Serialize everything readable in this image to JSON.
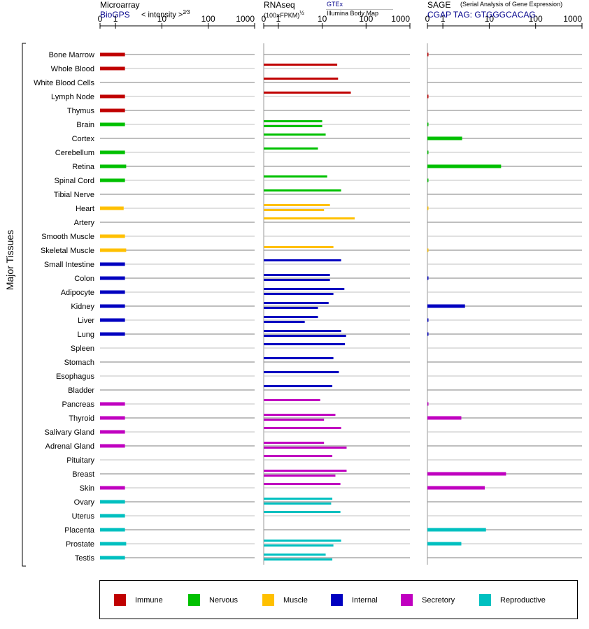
{
  "panels": [
    {
      "key": "microarray",
      "title": "Microarray",
      "source": "BioGPS",
      "scale_label": "< intensity >",
      "exponent": "2⁄3"
    },
    {
      "key": "rnaseq",
      "title": "RNAseq",
      "scale_label": "(100×FPKM)",
      "exponent": "½",
      "source_primary": "GTEx",
      "source_secondary": "Illumina Body Map"
    },
    {
      "key": "sage",
      "title": "SAGE",
      "subtitle": "(Serial Analysis of Gene Expression)",
      "source": "CGAP TAG: GTGGGCACAG"
    }
  ],
  "y_group_label": "Major Tissues",
  "legend": [
    {
      "name": "Immune",
      "color": "#c00000"
    },
    {
      "name": "Nervous",
      "color": "#00c000"
    },
    {
      "name": "Muscle",
      "color": "#ffc000"
    },
    {
      "name": "Internal",
      "color": "#0000c0"
    },
    {
      "name": "Secretory",
      "color": "#c000c0"
    },
    {
      "name": "Reproductive",
      "color": "#00c0c0"
    }
  ],
  "chart_data": {
    "type": "bar",
    "axis": {
      "scale": "custom-power",
      "ticks": [
        0,
        1,
        10,
        100,
        1000
      ],
      "range": [
        0,
        1000
      ]
    },
    "categories": [
      "Bone Marrow",
      "Whole Blood",
      "White Blood Cells",
      "Lymph Node",
      "Thymus",
      "Brain",
      "Cortex",
      "Cerebellum",
      "Retina",
      "Spinal Cord",
      "Tibial Nerve",
      "Heart",
      "Artery",
      "Smooth Muscle",
      "Skeletal Muscle",
      "Small Intestine",
      "Colon",
      "Adipocyte",
      "Kidney",
      "Liver",
      "Lung",
      "Spleen",
      "Stomach",
      "Esophagus",
      "Bladder",
      "Pancreas",
      "Thyroid",
      "Salivary Gland",
      "Adrenal Gland",
      "Pituitary",
      "Breast",
      "Skin",
      "Ovary",
      "Uterus",
      "Placenta",
      "Prostate",
      "Testis"
    ],
    "groups": [
      "Immune",
      "Immune",
      "Immune",
      "Immune",
      "Immune",
      "Nervous",
      "Nervous",
      "Nervous",
      "Nervous",
      "Nervous",
      "Nervous",
      "Muscle",
      "Muscle",
      "Muscle",
      "Muscle",
      "Internal",
      "Internal",
      "Internal",
      "Internal",
      "Internal",
      "Internal",
      "Internal",
      "Internal",
      "Internal",
      "Internal",
      "Secretory",
      "Secretory",
      "Secretory",
      "Secretory",
      "Secretory",
      "Secretory",
      "Secretory",
      "Reproductive",
      "Reproductive",
      "Reproductive",
      "Reproductive",
      "Reproductive"
    ],
    "microarray": [
      1.6,
      1.6,
      null,
      1.6,
      1.6,
      1.6,
      null,
      1.6,
      1.7,
      1.6,
      null,
      1.5,
      null,
      1.6,
      1.7,
      1.6,
      1.6,
      1.6,
      1.6,
      1.6,
      1.6,
      null,
      null,
      null,
      null,
      1.6,
      1.6,
      1.6,
      1.6,
      null,
      null,
      1.6,
      1.6,
      1.6,
      1.6,
      1.7,
      1.6
    ],
    "rnaseq_gtex": [
      null,
      22,
      null,
      null,
      null,
      10,
      12,
      null,
      null,
      13,
      27,
      15,
      null,
      null,
      18,
      27,
      15,
      32,
      14,
      8,
      27,
      null,
      null,
      null,
      null,
      null,
      20,
      null,
      null,
      null,
      36,
      26,
      17,
      null,
      null,
      null,
      null
    ],
    "rnaseq_ibm": [
      null,
      null,
      23,
      null,
      null,
      10,
      null,
      8,
      null,
      null,
      null,
      11,
      55,
      null,
      null,
      null,
      15,
      18,
      8,
      null,
      null,
      null,
      null,
      null,
      null,
      null,
      null,
      null,
      null,
      null,
      null,
      null,
      null,
      null,
      null,
      null,
      null
    ],
    "rnaseq_single": [
      null,
      null,
      null,
      45,
      null,
      null,
      null,
      null,
      null,
      null,
      null,
      null,
      null,
      null,
      null,
      null,
      null,
      null,
      null,
      null,
      null,
      null,
      null,
      null,
      null,
      null,
      null,
      null,
      null,
      null,
      null,
      null,
      null,
      null,
      null,
      null,
      null
    ],
    "rnaseq": [
      [],
      [
        22
      ],
      [
        23
      ],
      [
        45
      ],
      [],
      [
        10,
        10
      ],
      [
        12
      ],
      [
        8
      ],
      [],
      [
        13
      ],
      [
        27
      ],
      [
        15,
        11
      ],
      [
        55
      ],
      [],
      [
        18,
        null
      ],
      [
        27
      ],
      [
        15,
        15
      ],
      [
        32,
        18
      ],
      [
        14,
        8
      ],
      [
        8,
        4
      ],
      [
        27,
        35
      ],
      [
        33
      ],
      [
        18
      ],
      [
        24
      ],
      [
        17
      ],
      [
        9
      ],
      [
        20,
        11
      ],
      [
        27
      ],
      [
        11,
        36
      ],
      [
        17
      ],
      [
        36,
        20
      ],
      [
        26
      ],
      [
        17,
        16
      ],
      [
        26
      ],
      [],
      [
        27,
        18
      ],
      [
        12,
        17
      ]
    ],
    "sage": [
      0.05,
      null,
      null,
      0.03,
      null,
      0.03,
      2.6,
      0.03,
      18,
      0.03,
      null,
      0.02,
      null,
      null,
      0.02,
      null,
      0.05,
      null,
      3.0,
      0.05,
      0.05,
      null,
      null,
      null,
      null,
      0.05,
      2.5,
      null,
      null,
      null,
      23,
      8,
      null,
      null,
      8.5,
      2.5,
      null
    ]
  }
}
